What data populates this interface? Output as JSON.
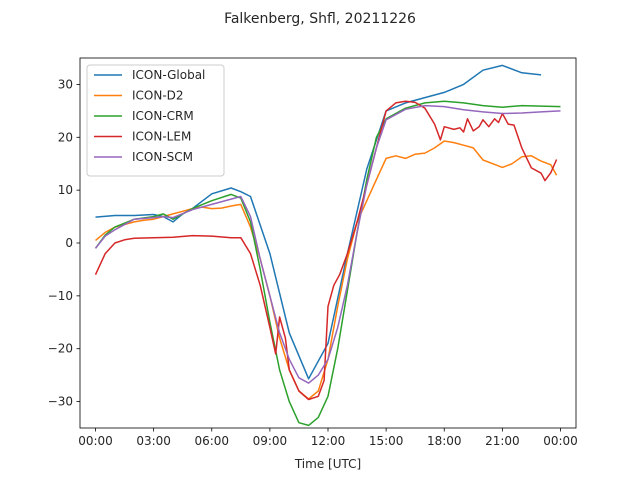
{
  "chart_data": {
    "type": "line",
    "title": "Falkenberg, Shfl, 20211226",
    "xlabel": "Time [UTC]",
    "ylabel": "",
    "xlim": [
      -0.8,
      24.8
    ],
    "ylim": [
      -35,
      35
    ],
    "xticks": [
      0,
      3,
      6,
      9,
      12,
      15,
      18,
      21,
      24
    ],
    "xtick_labels": [
      "00:00",
      "03:00",
      "06:00",
      "09:00",
      "12:00",
      "15:00",
      "18:00",
      "21:00",
      "00:00"
    ],
    "yticks": [
      -30,
      -20,
      -10,
      0,
      10,
      20,
      30
    ],
    "ytick_labels": [
      "−30",
      "−20",
      "−10",
      "0",
      "10",
      "20",
      "30"
    ],
    "grid": false,
    "legend_position": "upper-left",
    "series": [
      {
        "name": "ICON-Global",
        "color": "#1f77b4",
        "x": [
          0,
          1,
          2,
          3,
          3.5,
          4,
          4.5,
          5,
          6,
          7,
          7.5,
          8,
          9,
          10,
          11,
          12,
          13,
          14,
          15,
          16,
          17,
          18,
          19,
          20,
          21,
          22,
          23
        ],
        "y": [
          4.9,
          5.2,
          5.2,
          5.4,
          5.0,
          4.0,
          5.5,
          6.5,
          9.3,
          10.4,
          9.7,
          8.8,
          -2.0,
          -17.0,
          -25.7,
          -19.0,
          -2.0,
          14.0,
          25.0,
          26.5,
          27.5,
          28.5,
          30.0,
          32.7,
          33.6,
          32.2,
          31.8
        ]
      },
      {
        "name": "ICON-D2",
        "color": "#ff7f0e",
        "x": [
          0,
          0.5,
          1,
          1.5,
          2,
          2.5,
          3,
          3.5,
          4,
          4.5,
          5,
          5.5,
          6,
          6.5,
          7,
          7.5,
          8,
          8.5,
          9,
          9.5,
          10,
          10.5,
          11,
          11.5,
          12,
          12.5,
          13,
          13.5,
          14,
          14.5,
          15,
          15.5,
          16,
          16.5,
          17,
          17.5,
          18,
          18.5,
          19,
          19.5,
          20,
          20.5,
          21,
          21.5,
          22,
          22.5,
          23,
          23.5,
          23.8
        ],
        "y": [
          0.5,
          2.0,
          3.0,
          3.5,
          4.0,
          4.3,
          4.5,
          5.0,
          5.5,
          6.0,
          6.5,
          6.8,
          6.5,
          6.6,
          7.0,
          7.3,
          3.0,
          -3.0,
          -10.0,
          -18.0,
          -24.0,
          -28.0,
          -29.5,
          -28.0,
          -22.0,
          -12.0,
          -3.0,
          4.0,
          8.0,
          12.0,
          16.0,
          16.5,
          16.0,
          16.8,
          17.0,
          18.0,
          19.3,
          19.0,
          18.5,
          18.0,
          15.7,
          15.0,
          14.3,
          15.0,
          16.3,
          16.5,
          15.5,
          14.8,
          12.8
        ]
      },
      {
        "name": "ICON-CRM",
        "color": "#2ca02c",
        "x": [
          0,
          0.5,
          1,
          2,
          3,
          3.5,
          4,
          5,
          6,
          7,
          7.5,
          8,
          8.5,
          9,
          9.5,
          10,
          10.5,
          11,
          11.5,
          12,
          12.5,
          13,
          13.5,
          14,
          14.5,
          15,
          16,
          17,
          18,
          19,
          20,
          21,
          22,
          23,
          24
        ],
        "y": [
          -1.0,
          1.5,
          3.0,
          4.5,
          5.0,
          5.5,
          4.5,
          6.5,
          8.0,
          9.2,
          8.5,
          4.0,
          -5.0,
          -15.0,
          -24.0,
          -30.0,
          -34.0,
          -34.5,
          -33.0,
          -29.0,
          -20.0,
          -9.0,
          2.0,
          12.0,
          20.0,
          23.5,
          25.5,
          26.5,
          26.8,
          26.5,
          26.0,
          25.7,
          26.0,
          25.9,
          25.8
        ]
      },
      {
        "name": "ICON-LEM",
        "color": "#d62728",
        "x": [
          0,
          0.5,
          1,
          1.5,
          2,
          3,
          4,
          5,
          6,
          7,
          7.5,
          8,
          8.5,
          9,
          9.3,
          9.5,
          9.8,
          10,
          10.5,
          11,
          11.5,
          11.8,
          12,
          12.3,
          12.6,
          13,
          13.5,
          14,
          14.5,
          15,
          15.5,
          16,
          16.5,
          17,
          17.5,
          17.8,
          18,
          18.5,
          18.8,
          19,
          19.2,
          19.5,
          19.8,
          20,
          20.3,
          20.6,
          20.8,
          21,
          21.3,
          21.6,
          22,
          22.5,
          23,
          23.2,
          23.5,
          23.8
        ],
        "y": [
          -6.0,
          -2.0,
          0.0,
          0.6,
          0.9,
          1.0,
          1.1,
          1.4,
          1.3,
          1.0,
          1.0,
          -2.0,
          -8.0,
          -16.0,
          -21.0,
          -14.0,
          -18.0,
          -24.0,
          -28.0,
          -29.6,
          -29.0,
          -26.0,
          -12.0,
          -8.0,
          -6.0,
          -2.0,
          4.0,
          11.0,
          18.0,
          25.0,
          26.5,
          26.8,
          26.6,
          25.5,
          22.5,
          19.5,
          22.0,
          21.5,
          21.8,
          21.0,
          23.5,
          21.2,
          22.0,
          23.3,
          22.0,
          23.5,
          22.8,
          24.5,
          22.5,
          22.3,
          18.0,
          14.2,
          13.2,
          11.8,
          13.3,
          15.8
        ]
      },
      {
        "name": "ICON-SCM",
        "color": "#9467bd",
        "x": [
          0,
          0.5,
          1,
          2,
          3,
          3.5,
          4,
          5,
          6,
          7,
          7.5,
          8,
          8.5,
          9,
          9.5,
          10,
          10.5,
          11,
          11.5,
          12,
          12.5,
          13,
          13.5,
          14,
          14.5,
          15,
          16,
          17,
          18,
          19,
          20,
          21,
          22,
          23,
          24
        ],
        "y": [
          -1.0,
          1.3,
          2.5,
          4.5,
          4.8,
          5.0,
          4.8,
          6.3,
          7.3,
          8.3,
          8.8,
          5.0,
          -3.0,
          -10.0,
          -17.0,
          -22.0,
          -25.5,
          -26.5,
          -25.0,
          -22.0,
          -16.0,
          -8.0,
          2.0,
          11.0,
          18.0,
          23.3,
          25.3,
          26.0,
          25.8,
          25.2,
          24.8,
          24.5,
          24.6,
          24.8,
          25.0
        ]
      }
    ]
  }
}
